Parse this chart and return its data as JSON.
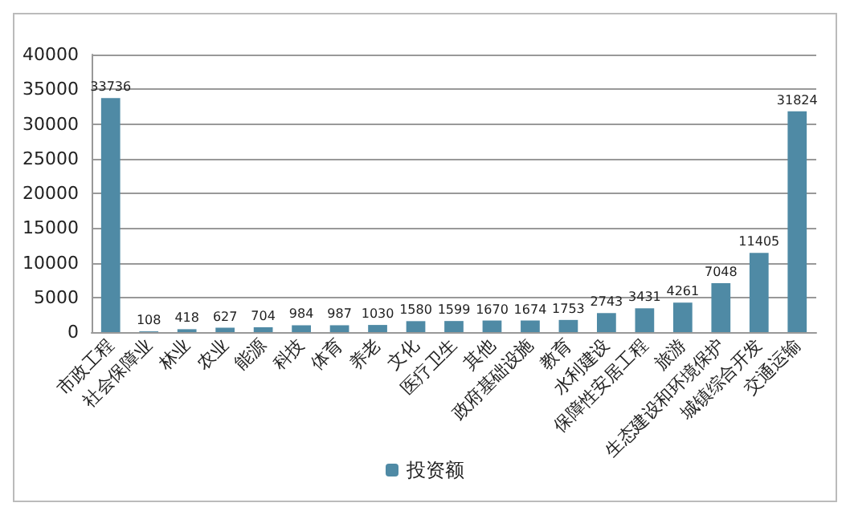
{
  "chart_data": {
    "type": "bar",
    "categories": [
      "市政工程",
      "社会保障业",
      "林业",
      "农业",
      "能源",
      "科技",
      "体育",
      "养老",
      "文化",
      "医疗卫生",
      "其他",
      "政府基础设施",
      "教育",
      "水利建设",
      "保障性安居工程",
      "旅游",
      "生态建设和环境保护",
      "城镇综合开发",
      "交通运输"
    ],
    "series": [
      {
        "name": "投资额",
        "color": "#4f8aa5",
        "values": [
          33736,
          108,
          418,
          627,
          704,
          984,
          987,
          1030,
          1580,
          1599,
          1670,
          1674,
          1753,
          2743,
          3431,
          4261,
          7048,
          11405,
          31824
        ]
      }
    ],
    "ylim": [
      0,
      40000
    ],
    "yticks": [
      0,
      5000,
      10000,
      15000,
      20000,
      25000,
      30000,
      35000,
      40000
    ],
    "grid": "y",
    "legend": "bottom",
    "data_labels": true
  }
}
